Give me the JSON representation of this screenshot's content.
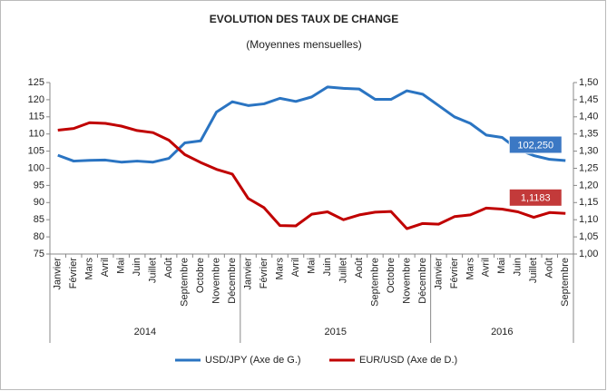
{
  "chart_data": {
    "type": "line",
    "title": "EVOLUTION DES TAUX DE CHANGE",
    "subtitle": "(Moyennes mensuelles)",
    "categories": [
      "Janvier",
      "Février",
      "Mars",
      "Avril",
      "Mai",
      "Juin",
      "Juillet",
      "Août",
      "Septembre",
      "Octobre",
      "Novembre",
      "Décembre",
      "Janvier",
      "Février",
      "Mars",
      "Avril",
      "Mai",
      "Juin",
      "Juillet",
      "Août",
      "Septembre",
      "Octobre",
      "Novembre",
      "Décembre",
      "Janvier",
      "Février",
      "Mars",
      "Avril",
      "Mai",
      "Juin",
      "Juillet",
      "Août",
      "Septembre"
    ],
    "category_groups": [
      {
        "label": "2014",
        "count": 12
      },
      {
        "label": "2015",
        "count": 12
      },
      {
        "label": "2016",
        "count": 9
      }
    ],
    "series": [
      {
        "name": "USD/JPY (Axe de G.)",
        "color": "#2a74c2",
        "axis": "y",
        "values": [
          103.8,
          102.1,
          102.3,
          102.4,
          101.8,
          102.1,
          101.8,
          102.9,
          107.4,
          108.0,
          116.4,
          119.4,
          118.3,
          118.8,
          120.4,
          119.5,
          120.8,
          123.7,
          123.3,
          123.1,
          120.1,
          120.1,
          122.6,
          121.6,
          118.3,
          115.0,
          113.1,
          109.7,
          109.0,
          105.5,
          103.7,
          102.6,
          102.25
        ],
        "value_labels": [
          null,
          null,
          null,
          null,
          null,
          null,
          null,
          null,
          null,
          null,
          null,
          null,
          null,
          null,
          null,
          null,
          null,
          null,
          null,
          null,
          null,
          null,
          null,
          null,
          null,
          null,
          null,
          null,
          null,
          null,
          null,
          null,
          "102,250"
        ],
        "label_color": "#3b78c4"
      },
      {
        "name": "EUR/USD (Axe de D.)",
        "color": "#c00000",
        "axis": "y2",
        "values": [
          1.361,
          1.366,
          1.383,
          1.381,
          1.373,
          1.36,
          1.354,
          1.332,
          1.29,
          1.267,
          1.247,
          1.233,
          1.162,
          1.135,
          1.083,
          1.082,
          1.116,
          1.123,
          1.1,
          1.114,
          1.122,
          1.124,
          1.074,
          1.089,
          1.087,
          1.109,
          1.114,
          1.134,
          1.131,
          1.123,
          1.107,
          1.121,
          1.1183
        ],
        "value_labels": [
          null,
          null,
          null,
          null,
          null,
          null,
          null,
          null,
          null,
          null,
          null,
          null,
          null,
          null,
          null,
          null,
          null,
          null,
          null,
          null,
          null,
          null,
          null,
          null,
          null,
          null,
          null,
          null,
          null,
          null,
          null,
          null,
          "1,1183"
        ],
        "label_color": "#c33a3a"
      }
    ],
    "ylim": [
      75,
      125
    ],
    "yticks": [
      75,
      80,
      85,
      90,
      95,
      100,
      105,
      110,
      115,
      120,
      125
    ],
    "y2lim": [
      1.0,
      1.5
    ],
    "y2ticks": [
      {
        "value": 1.0,
        "label": "1,00"
      },
      {
        "value": 1.05,
        "label": "1,05"
      },
      {
        "value": 1.1,
        "label": "1,10"
      },
      {
        "value": 1.15,
        "label": "1,15"
      },
      {
        "value": 1.2,
        "label": "1,20"
      },
      {
        "value": 1.25,
        "label": "1,25"
      },
      {
        "value": 1.3,
        "label": "1,30"
      },
      {
        "value": 1.35,
        "label": "1,35"
      },
      {
        "value": 1.4,
        "label": "1,40"
      },
      {
        "value": 1.45,
        "label": "1,45"
      },
      {
        "value": 1.5,
        "label": "1,50"
      }
    ],
    "grid": false,
    "legend": "bottom"
  }
}
